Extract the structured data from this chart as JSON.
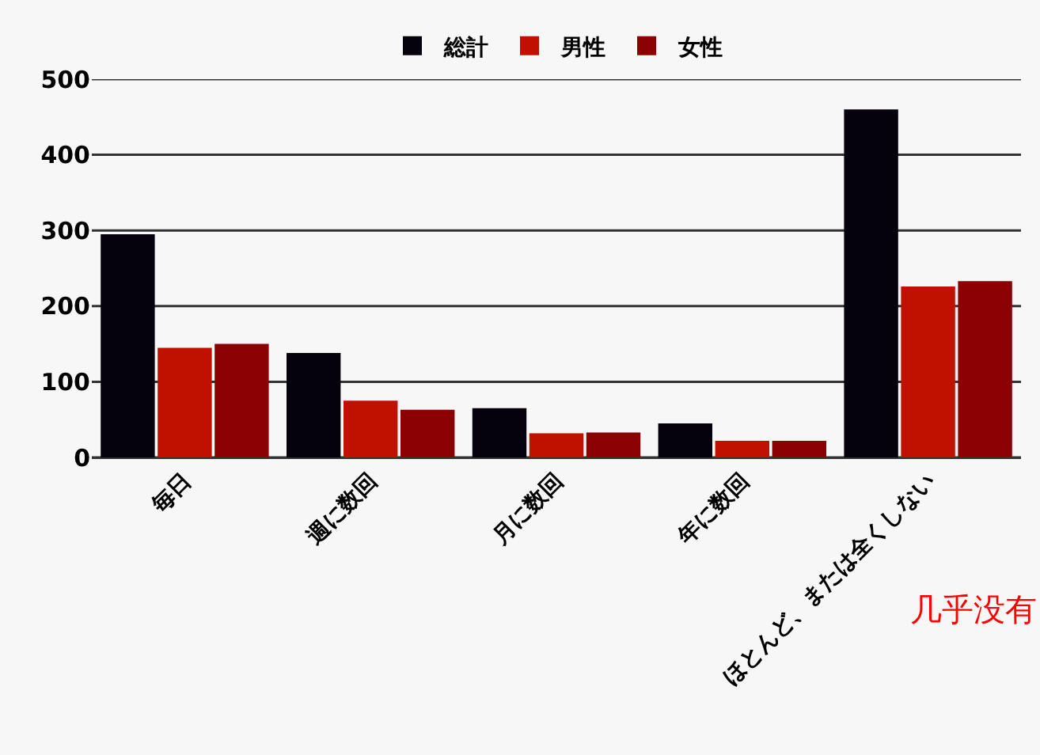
{
  "chart_data": {
    "type": "bar",
    "categories": [
      "毎日",
      "週に数回",
      "月に数回",
      "年に数回",
      "ほとんど、または全くしない"
    ],
    "series": [
      {
        "name": "総計",
        "color": "#05020d",
        "values": [
          295,
          138,
          65,
          45,
          460
        ]
      },
      {
        "name": "男性",
        "color": "#c01000",
        "values": [
          145,
          75,
          32,
          22,
          226
        ]
      },
      {
        "name": "女性",
        "color": "#8b0000",
        "values": [
          150,
          63,
          33,
          22,
          233
        ]
      }
    ],
    "ylim": [
      0,
      500
    ],
    "yticks": [
      0,
      100,
      200,
      300,
      400,
      500
    ],
    "grid": "y",
    "legend": "top",
    "annotations": [
      "几乎没有"
    ]
  }
}
